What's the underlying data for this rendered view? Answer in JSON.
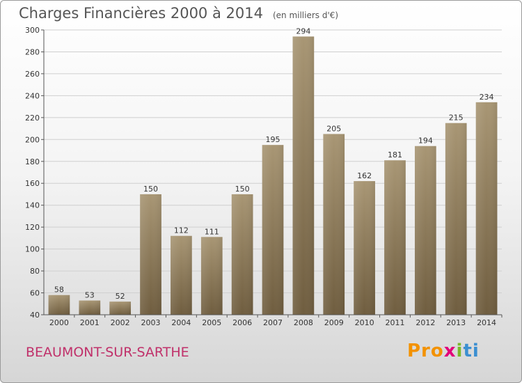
{
  "chart_data": {
    "type": "bar",
    "title": "Charges Financières 2000 à 2014",
    "unit": "(en milliers d'€)",
    "categories": [
      "2000",
      "2001",
      "2002",
      "2003",
      "2004",
      "2005",
      "2006",
      "2007",
      "2008",
      "2009",
      "2010",
      "2011",
      "2012",
      "2013",
      "2014"
    ],
    "values": [
      58,
      53,
      52,
      150,
      112,
      111,
      150,
      195,
      294,
      205,
      162,
      181,
      194,
      215,
      234
    ],
    "ylim": [
      40,
      300
    ],
    "yticks": [
      40,
      60,
      80,
      100,
      120,
      140,
      160,
      180,
      200,
      220,
      240,
      260,
      280,
      300
    ],
    "grid": true,
    "bar_color_top": "#a89674",
    "bar_color_bottom": "#6f5d3f"
  },
  "footer": {
    "city": "BEAUMONT-SUR-SARTHE"
  },
  "logo": {
    "parts": [
      "Pro",
      "x",
      "i",
      "ti"
    ]
  }
}
